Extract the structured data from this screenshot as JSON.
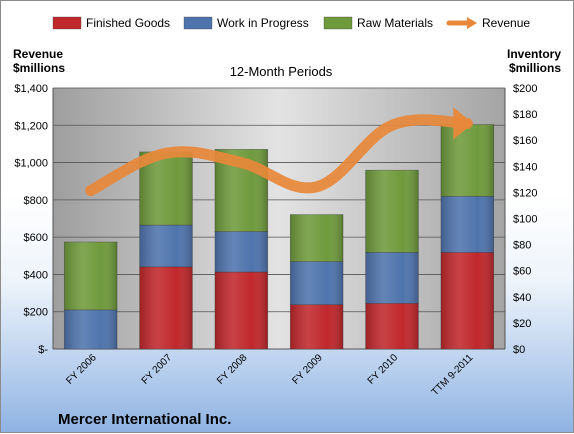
{
  "chart_data": {
    "type": "bar",
    "title": "12-Month Periods",
    "company": "Mercer International Inc.",
    "left_axis_label": [
      "Revenue",
      "$millions"
    ],
    "right_axis_label": [
      "Inventory",
      "$millions"
    ],
    "categories": [
      "FY 2006",
      "FY 2007",
      "FY 2008",
      "FY 2009",
      "FY 2010",
      "TTM 9-2011"
    ],
    "left_ticks": [
      "$-",
      "$200",
      "$400",
      "$600",
      "$800",
      "$1,000",
      "$1,200",
      "$1,400"
    ],
    "right_ticks": [
      "$0",
      "$20",
      "$40",
      "$60",
      "$80",
      "$100",
      "$120",
      "$140",
      "$160",
      "$180",
      "$200"
    ],
    "ylim_left": [
      0,
      1400
    ],
    "ylim_right": [
      0,
      200
    ],
    "stacked": true,
    "legend_position": "top",
    "series": [
      {
        "name": "Finished Goods",
        "axis": "right",
        "color": "#c0282c",
        "values": [
          0,
          63,
          59,
          34,
          35,
          74
        ]
      },
      {
        "name": "Work in Progress",
        "axis": "right",
        "color": "#4f74ad",
        "values": [
          30,
          32,
          31,
          33,
          39,
          43
        ]
      },
      {
        "name": "Raw Materials",
        "axis": "right",
        "color": "#6f9a3c",
        "values": [
          52,
          56,
          63,
          36,
          63,
          55
        ]
      },
      {
        "name": "Revenue",
        "axis": "left",
        "type": "line",
        "color": "#e8883a",
        "values": [
          850,
          1050,
          1000,
          870,
          1200,
          1210
        ]
      }
    ]
  }
}
